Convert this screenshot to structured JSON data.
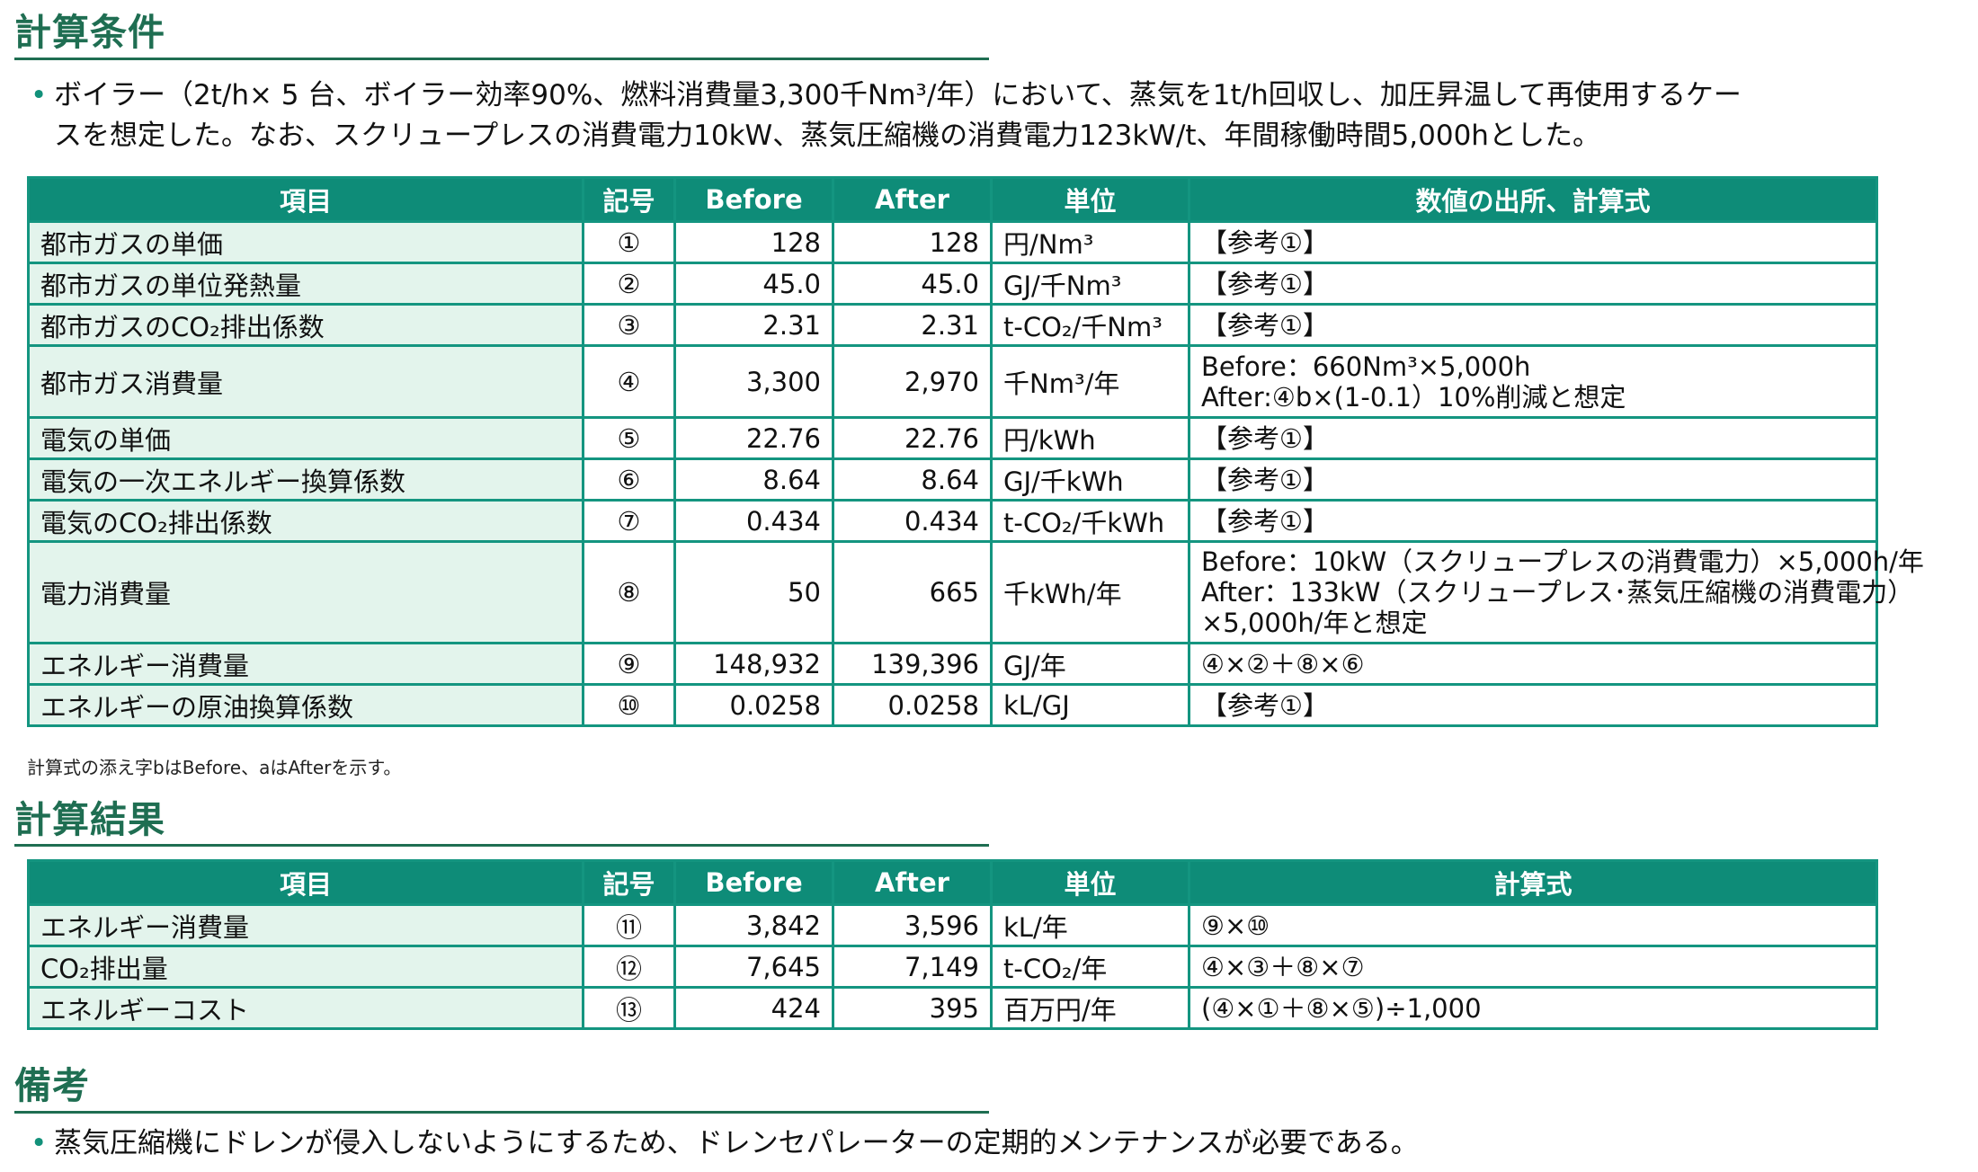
{
  "conditions": {
    "title": "計算条件",
    "bullet_line1": "ボイラー（2t/h× 5 台、ボイラー効率90%、燃料消費量3,300千Nm³/年）において、蒸気を1t/h回収し、加圧昇温して再使用するケー",
    "bullet_line2": "スを想定した。なお、スクリュープレスの消費電力10kW、蒸気圧縮機の消費電力123kW/t、年間稼働時間5,000hとした。",
    "table": {
      "headers": [
        "項目",
        "記号",
        "Before",
        "After",
        "単位",
        "数値の出所、計算式"
      ],
      "rows": [
        {
          "item": "都市ガスの単価",
          "symbol": "①",
          "before": "128",
          "after": "128",
          "unit": "円/Nm³",
          "source": [
            "【参考①】"
          ]
        },
        {
          "item": "都市ガスの単位発熱量",
          "symbol": "②",
          "before": "45.0",
          "after": "45.0",
          "unit": "GJ/千Nm³",
          "source": [
            "【参考①】"
          ]
        },
        {
          "item": "都市ガスのCO₂排出係数",
          "symbol": "③",
          "before": "2.31",
          "after": "2.31",
          "unit": "t-CO₂/千Nm³",
          "source": [
            "【参考①】"
          ]
        },
        {
          "item": "都市ガス消費量",
          "symbol": "④",
          "before": "3,300",
          "after": "2,970",
          "unit": "千Nm³/年",
          "source": [
            "Before：660Nm³×5,000h",
            "After:④b×(1-0.1）10%削減と想定"
          ]
        },
        {
          "item": "電気の単価",
          "symbol": "⑤",
          "before": "22.76",
          "after": "22.76",
          "unit": "円/kWh",
          "source": [
            "【参考①】"
          ]
        },
        {
          "item": "電気の一次エネルギー換算係数",
          "symbol": "⑥",
          "before": "8.64",
          "after": "8.64",
          "unit": "GJ/千kWh",
          "source": [
            "【参考①】"
          ]
        },
        {
          "item": "電気のCO₂排出係数",
          "symbol": "⑦",
          "before": "0.434",
          "after": "0.434",
          "unit": "t-CO₂/千kWh",
          "source": [
            "【参考①】"
          ]
        },
        {
          "item": "電力消費量",
          "symbol": "⑧",
          "before": "50",
          "after": "665",
          "unit": "千kWh/年",
          "source": [
            "Before：10kW（スクリュープレスの消費電力）×5,000h/年",
            "After：133kW（スクリュープレス･蒸気圧縮機の消費電力）",
            "×5,000h/年と想定"
          ]
        },
        {
          "item": "エネルギー消費量",
          "symbol": "⑨",
          "before": "148,932",
          "after": "139,396",
          "unit": "GJ/年",
          "source": [
            "④×②＋⑧×⑥"
          ]
        },
        {
          "item": "エネルギーの原油換算係数",
          "symbol": "⑩",
          "before": "0.0258",
          "after": "0.0258",
          "unit": "kL/GJ",
          "source": [
            "【参考①】"
          ]
        }
      ]
    },
    "footnote": "計算式の添え字bはBefore、aはAfterを示す。"
  },
  "results": {
    "title": "計算結果",
    "table": {
      "headers": [
        "項目",
        "記号",
        "Before",
        "After",
        "単位",
        "計算式"
      ],
      "rows": [
        {
          "item": "エネルギー消費量",
          "symbol": "⑪",
          "before": "3,842",
          "after": "3,596",
          "unit": "kL/年",
          "source": [
            "⑨×⑩"
          ]
        },
        {
          "item": "CO₂排出量",
          "symbol": "⑫",
          "before": "7,645",
          "after": "7,149",
          "unit": "t-CO₂/年",
          "source": [
            "④×③＋⑧×⑦"
          ]
        },
        {
          "item": "エネルギーコスト",
          "symbol": "⑬",
          "before": "424",
          "after": "395",
          "unit": "百万円/年",
          "source": [
            "(④×①＋⑧×⑤)÷1,000"
          ]
        }
      ]
    }
  },
  "remarks": {
    "title": "備考",
    "bullet": "蒸気圧縮機にドレンが侵入しないようにするため、ドレンセパレーターの定期的メンテナンスが必要である。"
  }
}
